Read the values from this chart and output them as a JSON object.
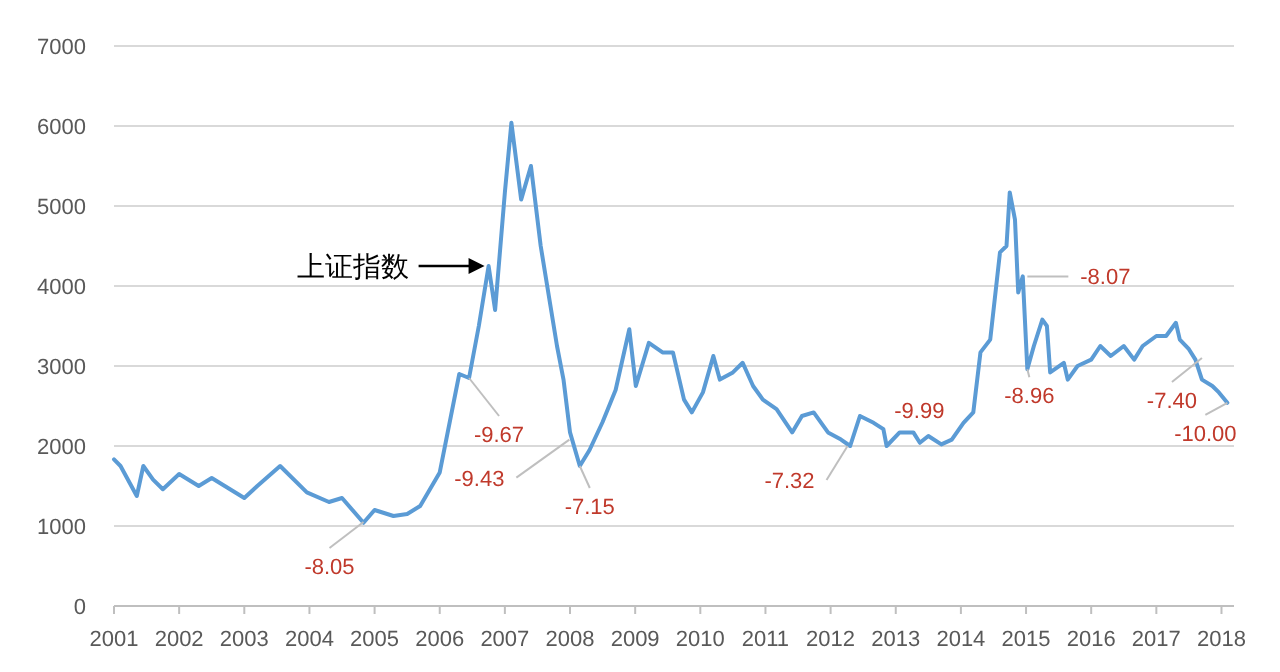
{
  "chart_data": {
    "type": "line",
    "x": [
      2001.0,
      2001.1,
      2001.35,
      2001.45,
      2001.6,
      2001.75,
      2002.0,
      2002.3,
      2002.5,
      2002.7,
      2003.0,
      2003.2,
      2003.55,
      2003.96,
      2004.3,
      2004.5,
      2004.83,
      2005.0,
      2005.29,
      2005.5,
      2005.7,
      2006.0,
      2006.3,
      2006.45,
      2006.6,
      2006.75,
      2006.85,
      2007.0,
      2007.1,
      2007.25,
      2007.4,
      2007.55,
      2007.7,
      2007.8,
      2007.9,
      2008.0,
      2008.15,
      2008.3,
      2008.5,
      2008.7,
      2008.91,
      2009.01,
      2009.21,
      2009.42,
      2009.58,
      2009.75,
      2009.87,
      2010.04,
      2010.2,
      2010.3,
      2010.5,
      2010.65,
      2010.81,
      2010.96,
      2011.17,
      2011.41,
      2011.56,
      2011.74,
      2011.96,
      2012.16,
      2012.3,
      2012.45,
      2012.66,
      2012.81,
      2012.86,
      2013.06,
      2013.27,
      2013.37,
      2013.5,
      2013.7,
      2013.86,
      2014.04,
      2014.19,
      2014.3,
      2014.45,
      2014.6,
      2014.7,
      2014.75,
      2014.83,
      2014.88,
      2014.95,
      2015.02,
      2015.12,
      2015.25,
      2015.32,
      2015.37,
      2015.58,
      2015.64,
      2015.79,
      2016.0,
      2016.14,
      2016.3,
      2016.5,
      2016.66,
      2016.79,
      2017.0,
      2017.15,
      2017.3,
      2017.36,
      2017.5,
      2017.6,
      2017.7,
      2017.86,
      2017.96,
      2018.09
    ],
    "series": [
      {
        "name": "上证指数",
        "color": "#5b9bd5",
        "values": [
          1833,
          1750,
          1375,
          1750,
          1580,
          1460,
          1650,
          1500,
          1600,
          1500,
          1350,
          1500,
          1750,
          1420,
          1300,
          1350,
          1040,
          1200,
          1125,
          1150,
          1250,
          1670,
          2900,
          2850,
          3500,
          4250,
          3700,
          5170,
          6040,
          5080,
          5500,
          4500,
          3750,
          3250,
          2830,
          2170,
          1750,
          1950,
          2300,
          2700,
          3460,
          2750,
          3290,
          3170,
          3170,
          2580,
          2420,
          2670,
          3125,
          2830,
          2920,
          3040,
          2750,
          2580,
          2460,
          2170,
          2375,
          2420,
          2170,
          2080,
          2000,
          2375,
          2290,
          2210,
          2000,
          2170,
          2170,
          2040,
          2125,
          2020,
          2080,
          2290,
          2420,
          3170,
          3330,
          4420,
          4500,
          5170,
          4830,
          3920,
          4120,
          2960,
          3250,
          3580,
          3500,
          2920,
          3040,
          2830,
          3000,
          3080,
          3250,
          3125,
          3250,
          3080,
          3250,
          3375,
          3375,
          3540,
          3330,
          3210,
          3080,
          2830,
          2750,
          2670,
          2540
        ]
      }
    ],
    "xlim": [
      2001,
      2018.1
    ],
    "xticks": [
      2001,
      2002,
      2003,
      2004,
      2005,
      2006,
      2007,
      2008,
      2009,
      2010,
      2011,
      2012,
      2013,
      2014,
      2015,
      2016,
      2017,
      2018
    ],
    "ylim": [
      0,
      7000
    ],
    "yticks": [
      0,
      1000,
      2000,
      3000,
      4000,
      5000,
      6000,
      7000
    ],
    "grid": "y",
    "annotations": [
      {
        "text": "-8.05",
        "x": 2004.83,
        "y": 1050
      },
      {
        "text": "-9.67",
        "x": 2006.45,
        "y": 2850
      },
      {
        "text": "-9.43",
        "x": 2007.99,
        "y": 2080
      },
      {
        "text": "-7.15",
        "x": 2008.15,
        "y": 1750
      },
      {
        "text": "-7.32",
        "x": 2012.26,
        "y": 2000
      },
      {
        "text": "-9.99",
        "x": 2013.3,
        "y": 2150
      },
      {
        "text": "-8.07",
        "x": 2015.02,
        "y": 4120
      },
      {
        "text": "-8.96",
        "x": 2015.02,
        "y": 2960
      },
      {
        "text": "-7.40",
        "x": 2017.7,
        "y": 3100
      },
      {
        "text": "-10.00",
        "x": 2018.09,
        "y": 2540
      }
    ]
  }
}
